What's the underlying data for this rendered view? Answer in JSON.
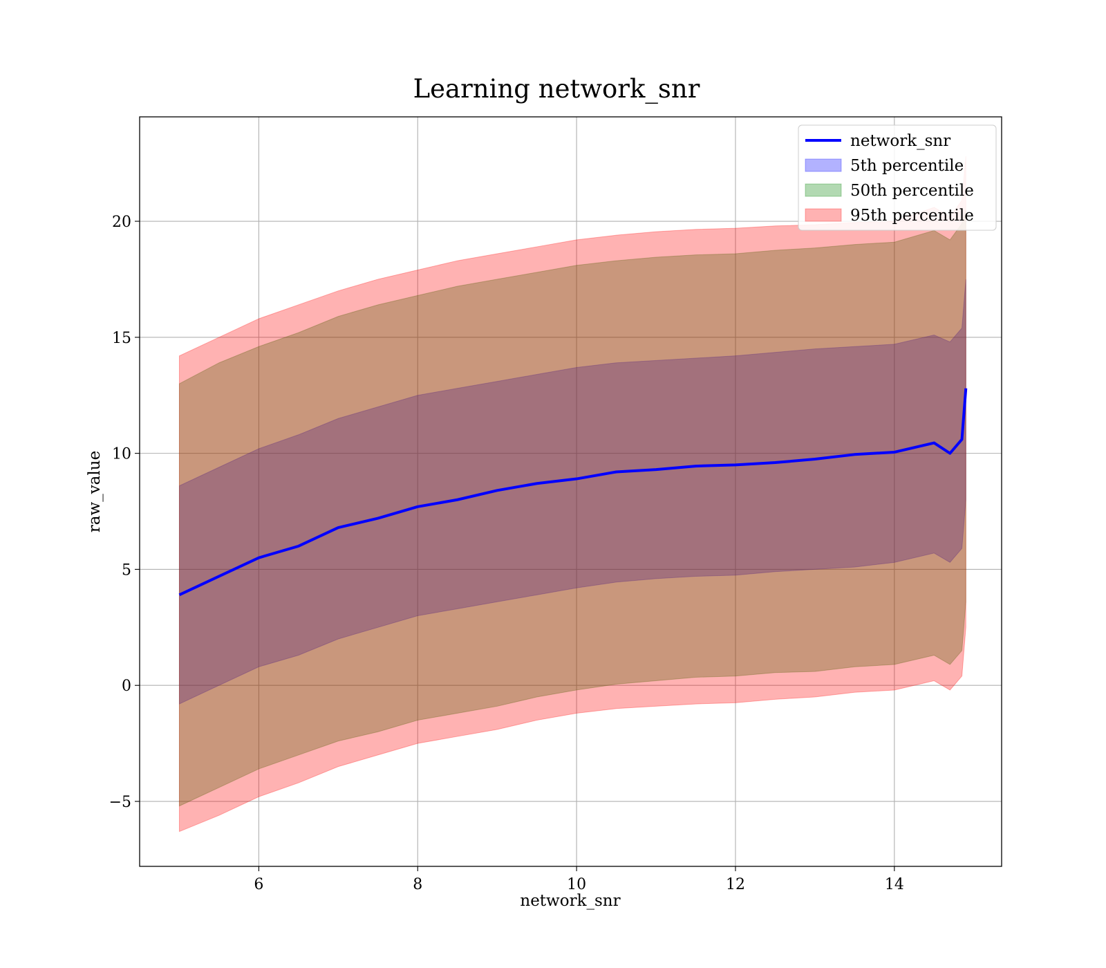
{
  "chart_data": {
    "type": "area",
    "title": "Learning network_snr",
    "xlabel": "network_snr",
    "ylabel": "raw_value",
    "xlim": [
      4.5,
      15.35
    ],
    "ylim": [
      -7.8,
      24.5
    ],
    "xticks": [
      6,
      8,
      10,
      12,
      14
    ],
    "xtick_labels": [
      "6",
      "8",
      "10",
      "12",
      "14"
    ],
    "yticks": [
      -5,
      0,
      5,
      10,
      15,
      20
    ],
    "ytick_labels": [
      "−5",
      "0",
      "5",
      "10",
      "15",
      "20"
    ],
    "grid": true,
    "legend_position": "top-right",
    "x": [
      5.0,
      5.5,
      6.0,
      6.5,
      7.0,
      7.5,
      8.0,
      8.5,
      9.0,
      9.5,
      10.0,
      10.5,
      11.0,
      11.5,
      12.0,
      12.5,
      13.0,
      13.5,
      14.0,
      14.5,
      14.7,
      14.85,
      14.9
    ],
    "series": [
      {
        "name": "network_snr",
        "kind": "line",
        "color": "#0000ff",
        "values": [
          3.9,
          4.7,
          5.5,
          6.0,
          6.8,
          7.2,
          7.7,
          8.0,
          8.4,
          8.7,
          8.9,
          9.2,
          9.3,
          9.45,
          9.5,
          9.6,
          9.75,
          9.95,
          10.05,
          10.45,
          10.0,
          10.6,
          12.8
        ]
      },
      {
        "name": "5th percentile",
        "kind": "band",
        "color": "#0000ff",
        "lower": [
          -0.8,
          0.0,
          0.8,
          1.3,
          2.0,
          2.5,
          3.0,
          3.3,
          3.6,
          3.9,
          4.2,
          4.45,
          4.6,
          4.7,
          4.75,
          4.9,
          5.0,
          5.1,
          5.3,
          5.7,
          5.3,
          5.9,
          8.0
        ],
        "upper": [
          8.6,
          9.4,
          10.2,
          10.8,
          11.5,
          12.0,
          12.5,
          12.8,
          13.1,
          13.4,
          13.7,
          13.9,
          14.0,
          14.1,
          14.2,
          14.35,
          14.5,
          14.6,
          14.7,
          15.1,
          14.8,
          15.4,
          17.5
        ]
      },
      {
        "name": "50th percentile",
        "kind": "band",
        "color": "#008000",
        "lower": [
          -5.2,
          -4.4,
          -3.6,
          -3.0,
          -2.4,
          -2.0,
          -1.5,
          -1.2,
          -0.9,
          -0.5,
          -0.2,
          0.05,
          0.2,
          0.35,
          0.4,
          0.55,
          0.6,
          0.8,
          0.9,
          1.3,
          0.9,
          1.5,
          3.6
        ],
        "upper": [
          13.0,
          13.9,
          14.6,
          15.2,
          15.9,
          16.4,
          16.8,
          17.2,
          17.5,
          17.8,
          18.1,
          18.3,
          18.45,
          18.55,
          18.6,
          18.75,
          18.85,
          19.0,
          19.1,
          19.6,
          19.2,
          19.9,
          20.5
        ]
      },
      {
        "name": "95th percentile",
        "kind": "band",
        "color": "#ff0000",
        "lower": [
          -6.3,
          -5.6,
          -4.8,
          -4.2,
          -3.5,
          -3.0,
          -2.5,
          -2.2,
          -1.9,
          -1.5,
          -1.2,
          -1.0,
          -0.9,
          -0.8,
          -0.75,
          -0.6,
          -0.5,
          -0.3,
          -0.2,
          0.2,
          -0.2,
          0.4,
          2.5
        ],
        "upper": [
          14.2,
          15.0,
          15.8,
          16.4,
          17.0,
          17.5,
          17.9,
          18.3,
          18.6,
          18.9,
          19.2,
          19.4,
          19.55,
          19.65,
          19.7,
          19.8,
          19.85,
          19.95,
          20.0,
          20.6,
          20.2,
          20.9,
          22.8
        ]
      }
    ]
  }
}
